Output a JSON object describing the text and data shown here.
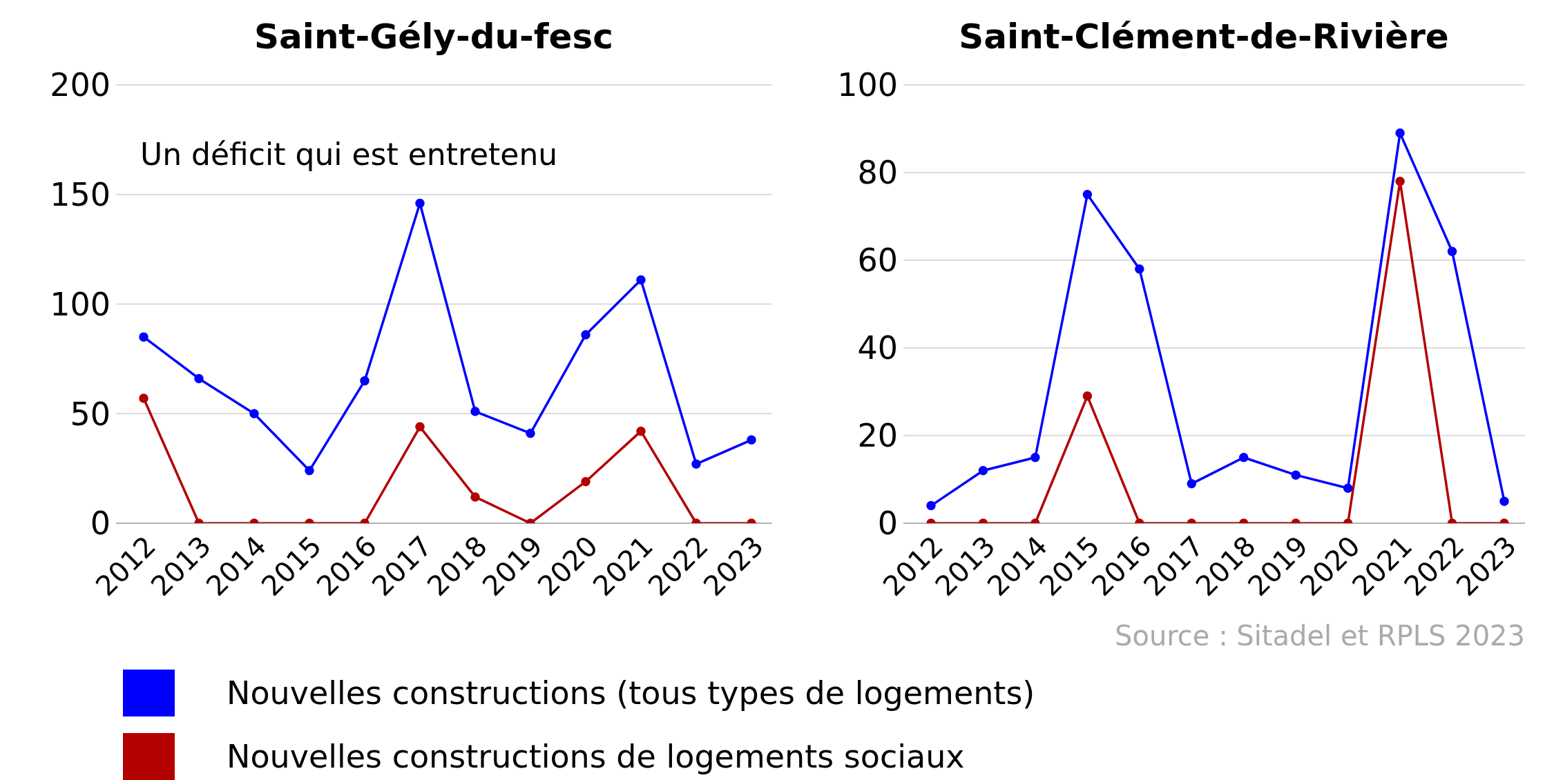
{
  "chart_data": [
    {
      "type": "line",
      "title": "Saint-Gély-du-fesc",
      "categories": [
        "2012",
        "2013",
        "2014",
        "2015",
        "2016",
        "2017",
        "2018",
        "2019",
        "2020",
        "2021",
        "2022",
        "2023"
      ],
      "series": [
        {
          "name": "Nouvelles constructions (tous types de logements)",
          "color": "#0000ff",
          "values": [
            85,
            66,
            50,
            24,
            65,
            146,
            51,
            41,
            86,
            111,
            27,
            38
          ]
        },
        {
          "name": "Nouvelles constructions de logements sociaux",
          "color": "#b30000",
          "values": [
            57,
            0,
            0,
            0,
            0,
            44,
            12,
            0,
            19,
            42,
            0,
            0
          ]
        }
      ],
      "ylim": [
        0,
        200
      ],
      "yticks": [
        0,
        50,
        100,
        150,
        200
      ],
      "grid": "y",
      "marker": "circle",
      "legend": "bottom",
      "annotations": [
        "Un déficit qui est entretenu"
      ]
    },
    {
      "type": "line",
      "title": "Saint-Clément-de-Rivière",
      "categories": [
        "2012",
        "2013",
        "2014",
        "2015",
        "2016",
        "2017",
        "2018",
        "2019",
        "2020",
        "2021",
        "2022",
        "2023"
      ],
      "series": [
        {
          "color": "#0000ff",
          "values": [
            4,
            12,
            15,
            75,
            58,
            9,
            15,
            11,
            8,
            89,
            62,
            5
          ]
        },
        {
          "color": "#b30000",
          "values": [
            0,
            0,
            0,
            29,
            0,
            0,
            0,
            0,
            0,
            78,
            0,
            0
          ]
        }
      ],
      "ylim": [
        0,
        100
      ],
      "yticks": [
        0,
        20,
        40,
        60,
        80,
        100
      ],
      "grid": "y",
      "marker": "circle",
      "annotations": [
        "Source : Sitadel et RPLS 2023"
      ]
    }
  ]
}
